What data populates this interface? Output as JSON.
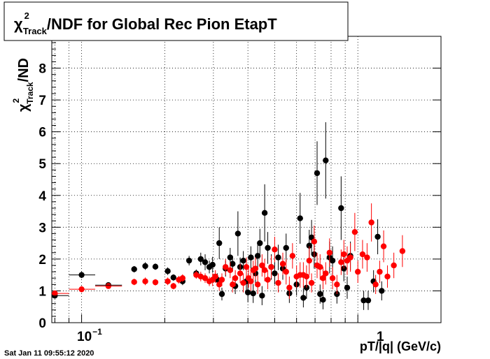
{
  "title": {
    "chi": "χ",
    "sup": "2",
    "sub": "Track",
    "rest": "/NDF for Global Rec Pion EtapT"
  },
  "ylabel": {
    "chi": "χ",
    "sup": "2",
    "sub": "Track",
    "rest": "/ND"
  },
  "xlabel": "pT/|q| (GeV/c)",
  "timestamp": "Sat Jan 11 09:55:12 2020",
  "x_tick_labels": {
    "ten": "10",
    "exp": "−1",
    "one": "1"
  },
  "chart_data": {
    "type": "scatter",
    "title": "χ2Track/NDF for Global Rec Pion EtapT",
    "xlabel": "pT/|q| (GeV/c)",
    "ylabel": "χ2Track/ND",
    "xscale": "log",
    "xlim": [
      0.078,
      2.0
    ],
    "ylim": [
      0,
      9
    ],
    "yticks": [
      0,
      1,
      2,
      3,
      4,
      5,
      6,
      7,
      8
    ],
    "grid": true,
    "series": [
      {
        "color": "#000000",
        "points": [
          [
            0.08,
            0.85,
            0.08
          ],
          [
            0.1,
            1.5,
            0.1
          ],
          [
            0.125,
            1.18,
            0.05
          ],
          [
            0.155,
            1.68,
            0.1
          ],
          [
            0.17,
            1.78,
            0.12
          ],
          [
            0.185,
            1.76,
            0.1
          ],
          [
            0.205,
            1.62,
            0.12
          ],
          [
            0.215,
            1.42,
            0.1
          ],
          [
            0.232,
            1.3,
            0.12
          ],
          [
            0.245,
            1.95,
            0.15
          ],
          [
            0.26,
            1.55,
            0.12
          ],
          [
            0.27,
            2.0,
            0.2
          ],
          [
            0.28,
            1.9,
            0.25
          ],
          [
            0.29,
            1.75,
            0.2
          ],
          [
            0.298,
            1.82,
            0.25
          ],
          [
            0.31,
            1.35,
            0.2
          ],
          [
            0.315,
            2.5,
            0.5
          ],
          [
            0.322,
            0.9,
            0.2
          ],
          [
            0.332,
            1.7,
            0.25
          ],
          [
            0.345,
            2.05,
            0.3
          ],
          [
            0.352,
            1.85,
            0.25
          ],
          [
            0.36,
            1.15,
            0.25
          ],
          [
            0.368,
            2.8,
            0.7
          ],
          [
            0.375,
            1.75,
            0.3
          ],
          [
            0.385,
            1.95,
            0.3
          ],
          [
            0.395,
            1.3,
            0.35
          ],
          [
            0.4,
            0.95,
            0.3
          ],
          [
            0.41,
            2.05,
            0.35
          ],
          [
            0.418,
            0.92,
            0.3
          ],
          [
            0.426,
            1.55,
            0.35
          ],
          [
            0.434,
            2.1,
            0.4
          ],
          [
            0.442,
            2.5,
            0.45
          ],
          [
            0.45,
            0.85,
            0.3
          ],
          [
            0.46,
            3.45,
            0.9
          ],
          [
            0.472,
            2.35,
            0.5
          ],
          [
            0.486,
            1.75,
            0.4
          ],
          [
            0.5,
            1.55,
            0.35
          ],
          [
            0.515,
            2.05,
            0.4
          ],
          [
            0.535,
            1.7,
            0.35
          ],
          [
            0.55,
            2.35,
            0.45
          ],
          [
            0.565,
            0.92,
            0.3
          ],
          [
            0.6,
            1.2,
            0.35
          ],
          [
            0.618,
            3.28,
            0.8
          ],
          [
            0.635,
            0.78,
            0.3
          ],
          [
            0.652,
            1.1,
            0.35
          ],
          [
            0.667,
            2.42,
            0.5
          ],
          [
            0.68,
            2.68,
            0.55
          ],
          [
            0.695,
            2.15,
            0.45
          ],
          [
            0.712,
            4.7,
            1.0
          ],
          [
            0.73,
            0.9,
            0.3
          ],
          [
            0.748,
            0.72,
            0.3
          ],
          [
            0.765,
            5.1,
            1.2
          ],
          [
            0.79,
            2.05,
            0.5
          ],
          [
            0.81,
            1.95,
            0.45
          ],
          [
            0.84,
            0.9,
            0.3
          ],
          [
            0.87,
            3.6,
            1.0
          ],
          [
            0.89,
            1.7,
            0.4
          ],
          [
            0.915,
            1.1,
            0.35
          ],
          [
            0.94,
            2.1,
            0.45
          ],
          [
            1.05,
            0.7,
            0.3
          ],
          [
            1.09,
            0.7,
            0.3
          ],
          [
            1.14,
            1.3,
            0.35
          ],
          [
            1.18,
            2.7,
            0.55
          ],
          [
            1.22,
            1.0,
            0.3
          ]
        ]
      },
      {
        "color": "#ff0000",
        "points": [
          [
            0.08,
            0.92,
            0.08
          ],
          [
            0.1,
            1.05,
            0.1
          ],
          [
            0.125,
            1.15,
            0.05
          ],
          [
            0.155,
            1.28,
            0.1
          ],
          [
            0.17,
            1.3,
            0.12
          ],
          [
            0.185,
            1.27,
            0.1
          ],
          [
            0.205,
            1.3,
            0.12
          ],
          [
            0.215,
            1.15,
            0.1
          ],
          [
            0.225,
            1.35,
            0.12
          ],
          [
            0.232,
            1.4,
            0.12
          ],
          [
            0.26,
            1.5,
            0.12
          ],
          [
            0.27,
            1.45,
            0.15
          ],
          [
            0.28,
            1.4,
            0.15
          ],
          [
            0.29,
            1.3,
            0.15
          ],
          [
            0.298,
            1.35,
            0.2
          ],
          [
            0.305,
            1.45,
            0.2
          ],
          [
            0.315,
            1.2,
            0.2
          ],
          [
            0.322,
            1.35,
            0.2
          ],
          [
            0.332,
            1.75,
            0.25
          ],
          [
            0.345,
            1.65,
            0.25
          ],
          [
            0.352,
            1.2,
            0.25
          ],
          [
            0.36,
            1.4,
            0.25
          ],
          [
            0.375,
            1.55,
            0.3
          ],
          [
            0.385,
            1.25,
            0.3
          ],
          [
            0.395,
            1.75,
            0.3
          ],
          [
            0.402,
            1.4,
            0.3
          ],
          [
            0.41,
            1.3,
            0.3
          ],
          [
            0.418,
            1.65,
            0.3
          ],
          [
            0.426,
            1.7,
            0.35
          ],
          [
            0.434,
            1.2,
            0.3
          ],
          [
            0.45,
            1.8,
            0.35
          ],
          [
            0.46,
            1.65,
            0.35
          ],
          [
            0.472,
            1.35,
            0.3
          ],
          [
            0.486,
            1.75,
            0.35
          ],
          [
            0.5,
            2.3,
            0.4
          ],
          [
            0.515,
            1.25,
            0.3
          ],
          [
            0.535,
            1.85,
            0.35
          ],
          [
            0.55,
            1.6,
            0.4
          ],
          [
            0.565,
            1.1,
            0.35
          ],
          [
            0.58,
            2.1,
            0.4
          ],
          [
            0.6,
            1.45,
            0.35
          ],
          [
            0.618,
            1.5,
            0.4
          ],
          [
            0.635,
            1.5,
            0.4
          ],
          [
            0.652,
            1.45,
            0.35
          ],
          [
            0.667,
            1.95,
            0.45
          ],
          [
            0.68,
            1.25,
            0.3
          ],
          [
            0.695,
            2.55,
            0.5
          ],
          [
            0.712,
            1.8,
            0.4
          ],
          [
            0.73,
            1.75,
            0.4
          ],
          [
            0.748,
            1.4,
            0.35
          ],
          [
            0.765,
            1.55,
            0.35
          ],
          [
            0.79,
            2.2,
            0.45
          ],
          [
            0.81,
            1.4,
            0.35
          ],
          [
            0.84,
            1.2,
            0.3
          ],
          [
            0.87,
            1.9,
            0.4
          ],
          [
            0.89,
            2.15,
            0.45
          ],
          [
            0.915,
            1.95,
            0.45
          ],
          [
            0.94,
            2.05,
            0.45
          ],
          [
            0.975,
            2.85,
            0.6
          ],
          [
            1.0,
            1.6,
            0.35
          ],
          [
            1.04,
            2.15,
            0.45
          ],
          [
            1.08,
            2.05,
            0.45
          ],
          [
            1.12,
            3.15,
            0.6
          ],
          [
            1.16,
            1.2,
            0.3
          ],
          [
            1.2,
            1.6,
            0.35
          ],
          [
            1.24,
            2.4,
            0.5
          ],
          [
            1.28,
            1.45,
            0.35
          ],
          [
            1.35,
            1.8,
            0.4
          ],
          [
            1.45,
            2.25,
            0.5
          ]
        ]
      }
    ]
  }
}
